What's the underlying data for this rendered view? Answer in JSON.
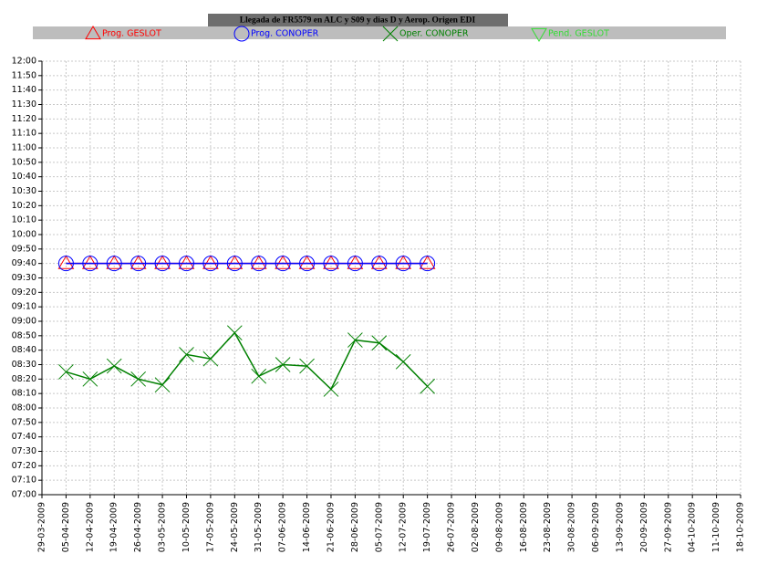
{
  "chart_data": {
    "type": "line",
    "title": "Llegada de FR5579 en ALC y S09 y dias D y Aerop. Origen EDI",
    "categories": [
      "29-03-2009",
      "05-04-2009",
      "12-04-2009",
      "19-04-2009",
      "26-04-2009",
      "03-05-2009",
      "10-05-2009",
      "17-05-2009",
      "24-05-2009",
      "31-05-2009",
      "07-06-2009",
      "14-06-2009",
      "21-06-2009",
      "28-06-2009",
      "05-07-2009",
      "12-07-2009",
      "19-07-2009",
      "26-07-2009",
      "02-08-2009",
      "09-08-2009",
      "16-08-2009",
      "23-08-2009",
      "30-08-2009",
      "06-09-2009",
      "13-09-2009",
      "20-09-2009",
      "27-09-2009",
      "04-10-2009",
      "11-10-2009",
      "18-10-2009"
    ],
    "series": [
      {
        "name": "Prog. GESLOT",
        "color": "#ff0000",
        "marker": "triangle-up",
        "values": [
          null,
          580,
          580,
          580,
          580,
          580,
          580,
          580,
          580,
          580,
          580,
          580,
          580,
          580,
          580,
          580,
          580,
          null,
          null,
          null,
          null,
          null,
          null,
          null,
          null,
          null,
          null,
          null,
          null,
          null
        ]
      },
      {
        "name": "Prog. CONOPER",
        "color": "#0000ff",
        "marker": "circle",
        "values": [
          null,
          580,
          580,
          580,
          580,
          580,
          580,
          580,
          580,
          580,
          580,
          580,
          580,
          580,
          580,
          580,
          580,
          null,
          null,
          null,
          null,
          null,
          null,
          null,
          null,
          null,
          null,
          null,
          null,
          null
        ]
      },
      {
        "name": "Oper. CONOPER",
        "color": "#008000",
        "marker": "x",
        "values": [
          null,
          505,
          500,
          509,
          500,
          496,
          517,
          514,
          532,
          502,
          510,
          509,
          493,
          527,
          525,
          512,
          495,
          null,
          null,
          null,
          null,
          null,
          null,
          null,
          null,
          null,
          null,
          null,
          null,
          null
        ]
      },
      {
        "name": "Pend. GESLOT",
        "color": "#33dd33",
        "marker": "triangle-down",
        "values": [
          null,
          null,
          null,
          null,
          null,
          null,
          null,
          null,
          null,
          null,
          null,
          null,
          null,
          null,
          null,
          null,
          null,
          null,
          null,
          null,
          null,
          null,
          null,
          null,
          null,
          null,
          null,
          null,
          null,
          null
        ]
      }
    ],
    "ylim": [
      420,
      720
    ],
    "yticks": [
      {
        "value": 420,
        "label": "07:00"
      },
      {
        "value": 430,
        "label": "07:10"
      },
      {
        "value": 440,
        "label": "07:20"
      },
      {
        "value": 450,
        "label": "07:30"
      },
      {
        "value": 460,
        "label": "07:40"
      },
      {
        "value": 470,
        "label": "07:50"
      },
      {
        "value": 480,
        "label": "08:00"
      },
      {
        "value": 490,
        "label": "08:10"
      },
      {
        "value": 500,
        "label": "08:20"
      },
      {
        "value": 510,
        "label": "08:30"
      },
      {
        "value": 520,
        "label": "08:40"
      },
      {
        "value": 530,
        "label": "08:50"
      },
      {
        "value": 540,
        "label": "09:00"
      },
      {
        "value": 550,
        "label": "09:10"
      },
      {
        "value": 560,
        "label": "09:20"
      },
      {
        "value": 570,
        "label": "09:30"
      },
      {
        "value": 580,
        "label": "09:40"
      },
      {
        "value": 590,
        "label": "09:50"
      },
      {
        "value": 600,
        "label": "10:00"
      },
      {
        "value": 610,
        "label": "10:10"
      },
      {
        "value": 620,
        "label": "10:20"
      },
      {
        "value": 630,
        "label": "10:30"
      },
      {
        "value": 640,
        "label": "10:40"
      },
      {
        "value": 650,
        "label": "10:50"
      },
      {
        "value": 660,
        "label": "11:00"
      },
      {
        "value": 670,
        "label": "11:10"
      },
      {
        "value": 680,
        "label": "11:20"
      },
      {
        "value": 690,
        "label": "11:30"
      },
      {
        "value": 700,
        "label": "11:40"
      },
      {
        "value": 710,
        "label": "11:50"
      },
      {
        "value": 720,
        "label": "12:00"
      }
    ],
    "grid": true
  }
}
